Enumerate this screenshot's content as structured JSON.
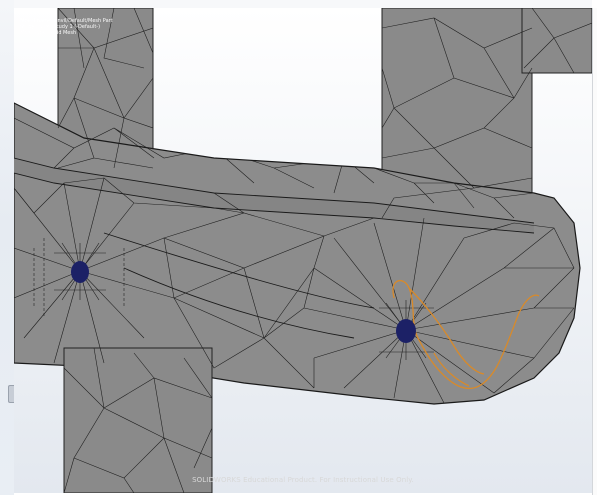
{
  "viewport": {
    "status_lines": [
      "Model name: Anvil/Default/Mesh Part",
      "Study name: Study 1 (-Default-)",
      "Mesh type: Solid Mesh"
    ],
    "watermark": "SOLIDWORKS Educational Product. For Instructional Use Only.",
    "colors": {
      "background_top": "#ffffff",
      "background_bottom": "#e3e8ef",
      "mesh_fill": "#8a8a8a",
      "mesh_lines": "#1a1a1a",
      "holes": "#1c2166",
      "highlight_edge": "#d88a2a"
    }
  }
}
